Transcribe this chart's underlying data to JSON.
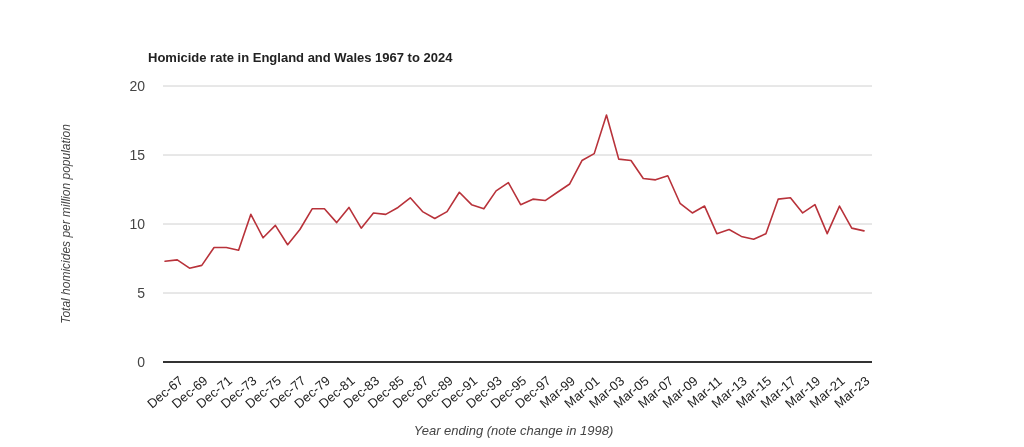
{
  "chart_data": {
    "type": "line",
    "title": "Homicide rate in England and Wales 1967 to 2024",
    "xlabel": "Year ending (note change in 1998)",
    "ylabel": "Total homicides per million population",
    "categories": [
      "Dec-67",
      null,
      "Dec-69",
      null,
      "Dec-71",
      null,
      "Dec-73",
      null,
      "Dec-75",
      null,
      "Dec-77",
      null,
      "Dec-79",
      null,
      "Dec-81",
      null,
      "Dec-83",
      null,
      "Dec-85",
      null,
      "Dec-87",
      null,
      "Dec-89",
      null,
      "Dec-91",
      null,
      "Dec-93",
      null,
      "Dec-95",
      null,
      "Dec-97",
      null,
      "Mar-99",
      null,
      "Mar-01",
      null,
      "Mar-03",
      null,
      "Mar-05",
      null,
      "Mar-07",
      null,
      "Mar-09",
      null,
      "Mar-11",
      null,
      "Mar-13",
      null,
      "Mar-15",
      null,
      "Mar-17",
      null,
      "Mar-19",
      null,
      "Mar-21",
      null,
      "Mar-23",
      null
    ],
    "series": [
      {
        "color": "#b8323a",
        "values": [
          7.3,
          7.4,
          6.8,
          7.0,
          8.3,
          8.3,
          8.1,
          10.7,
          9.0,
          9.9,
          8.5,
          9.6,
          11.1,
          11.1,
          10.1,
          11.2,
          9.7,
          10.8,
          10.7,
          11.2,
          11.9,
          10.9,
          10.4,
          10.9,
          12.3,
          11.4,
          11.1,
          12.4,
          13.0,
          11.4,
          11.8,
          11.7,
          12.3,
          12.9,
          14.6,
          15.1,
          17.9,
          14.7,
          14.6,
          13.3,
          13.2,
          13.5,
          11.5,
          10.8,
          11.3,
          9.3,
          9.6,
          9.1,
          8.9,
          9.3,
          11.8,
          11.9,
          10.8,
          11.4,
          9.3,
          11.3,
          9.7,
          9.5
        ]
      }
    ],
    "ylim": [
      0,
      20
    ],
    "yticks": [
      0,
      5,
      10,
      15,
      20
    ],
    "grid": "y",
    "marker": "none",
    "line_style": "solid"
  }
}
